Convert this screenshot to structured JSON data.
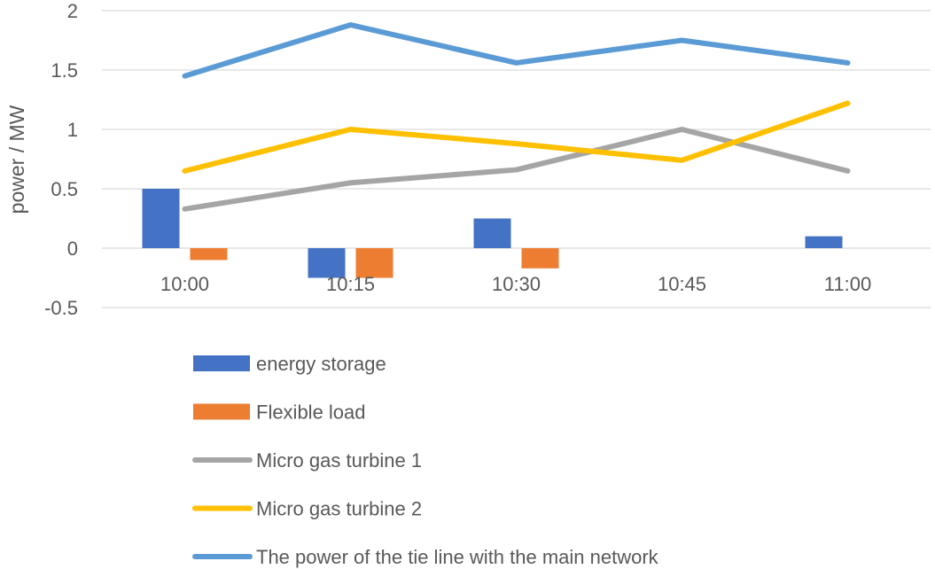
{
  "chart_data": {
    "type": "bar",
    "title": "",
    "xlabel": "",
    "ylabel": "power / MW",
    "ylim": [
      -0.5,
      2
    ],
    "yticks": [
      -0.5,
      0,
      0.5,
      1,
      1.5,
      2
    ],
    "ytick_labels": [
      "-0.5",
      "0",
      "0.5",
      "1",
      "1.5",
      "2"
    ],
    "grid": true,
    "legend_position": "bottom",
    "categories": [
      "10:00",
      "10:15",
      "10:30",
      "10:45",
      "11:00"
    ],
    "series": [
      {
        "name": "energy storage",
        "kind": "bar",
        "color": "#4472c4",
        "values": [
          0.5,
          -0.25,
          0.25,
          0,
          0.1
        ]
      },
      {
        "name": "Flexible load",
        "kind": "bar",
        "color": "#ed7d31",
        "values": [
          -0.1,
          -0.25,
          -0.17,
          0,
          0
        ]
      },
      {
        "name": "Micro gas turbine 1",
        "kind": "line",
        "color": "#a5a5a5",
        "values": [
          0.33,
          0.55,
          0.66,
          1.0,
          0.65
        ]
      },
      {
        "name": "Micro gas turbine 2",
        "kind": "line",
        "color": "#ffc000",
        "values": [
          0.65,
          1.0,
          0.88,
          0.74,
          1.22
        ]
      },
      {
        "name": "The power of the tie line with the main network",
        "kind": "line",
        "color": "#5b9bd5",
        "values": [
          1.45,
          1.88,
          1.56,
          1.75,
          1.56
        ]
      }
    ]
  }
}
